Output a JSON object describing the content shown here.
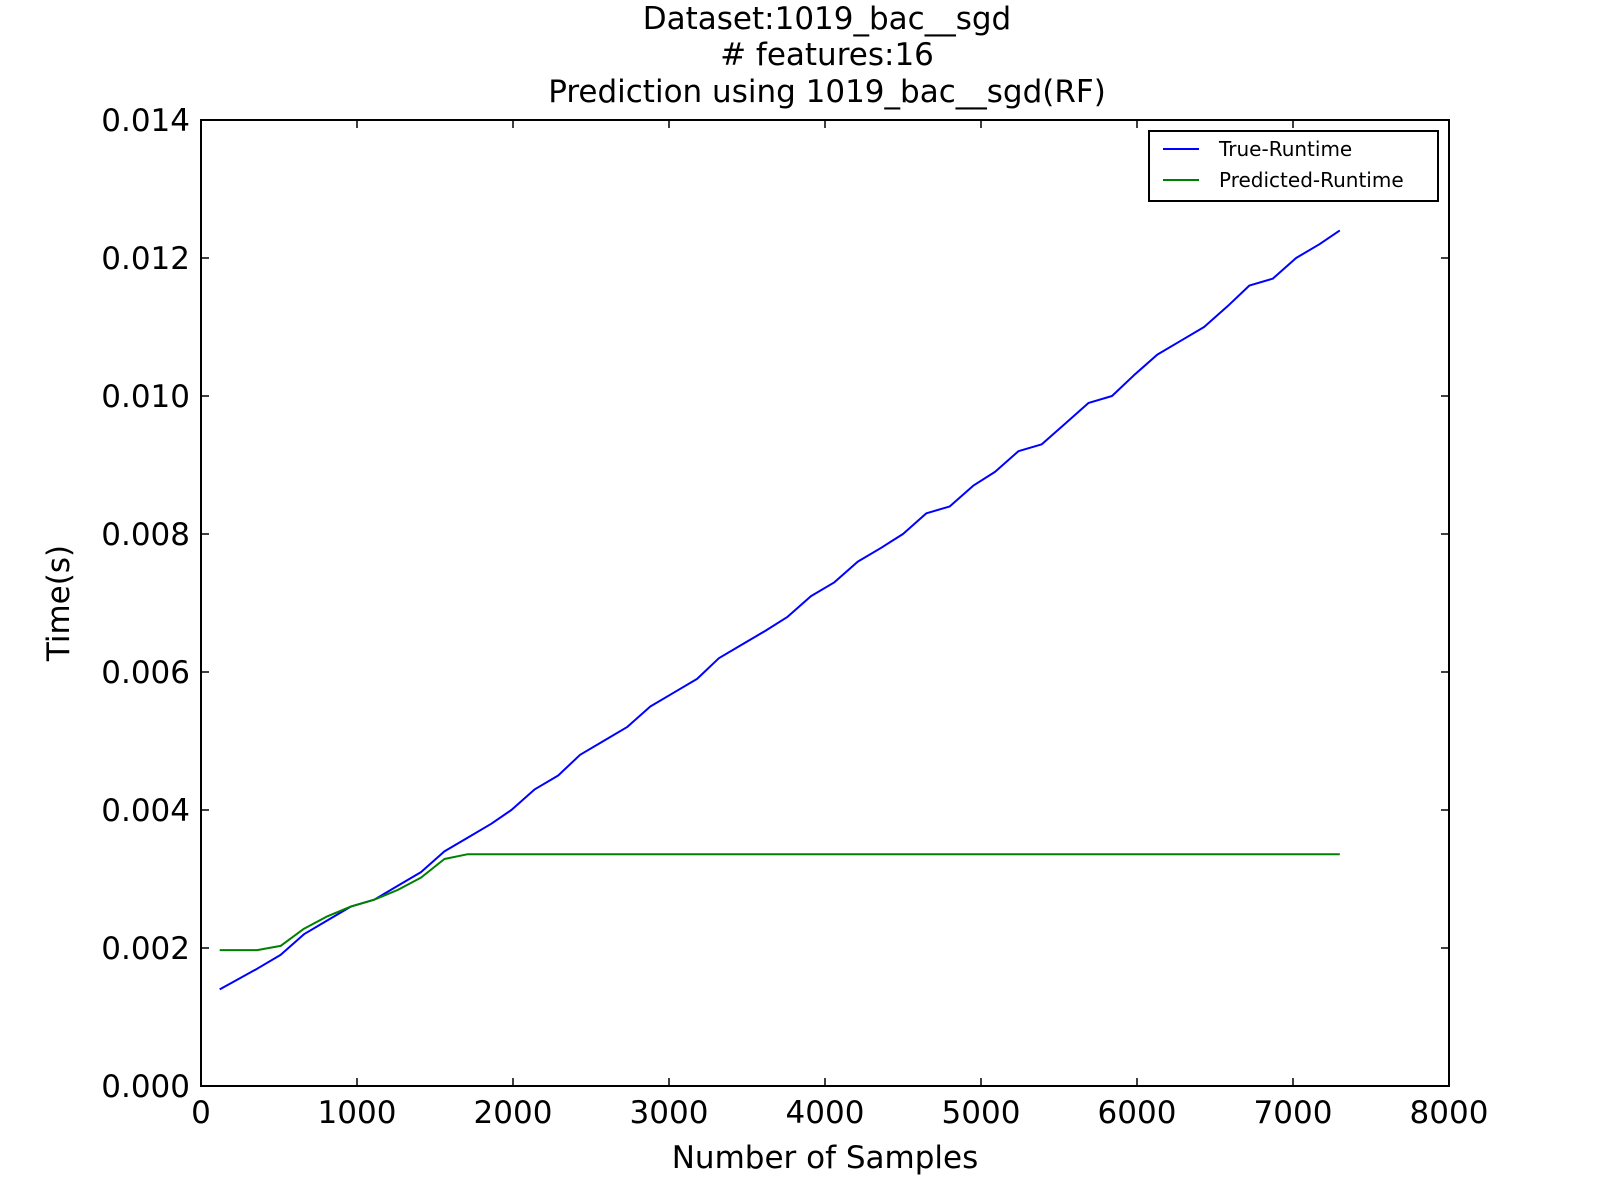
{
  "chart_data": {
    "type": "line",
    "title_lines": [
      "Dataset:1019_bac__sgd",
      "# features:16",
      "Prediction using 1019_bac__sgd(RF)"
    ],
    "xlabel": "Number of Samples",
    "ylabel": "Time(s)",
    "xlim": [
      0,
      8000
    ],
    "ylim": [
      0,
      0.014
    ],
    "x_ticks": [
      0,
      1000,
      2000,
      3000,
      4000,
      5000,
      6000,
      7000,
      8000
    ],
    "x_tick_labels": [
      "0",
      "1000",
      "2000",
      "3000",
      "4000",
      "5000",
      "6000",
      "7000",
      "8000"
    ],
    "y_ticks": [
      0,
      0.002,
      0.004,
      0.006,
      0.008,
      0.01,
      0.012,
      0.014
    ],
    "y_tick_labels": [
      "0.000",
      "0.002",
      "0.004",
      "0.006",
      "0.008",
      "0.010",
      "0.012",
      "0.014"
    ],
    "grid": false,
    "legend_position": "top-right",
    "series": [
      {
        "name": "True-Runtime",
        "color": "#0000ff",
        "x": [
          120,
          200,
          360,
          510,
          660,
          810,
          960,
          1110,
          1260,
          1410,
          1560,
          1710,
          1860,
          1990,
          2140,
          2290,
          2430,
          2580,
          2730,
          2880,
          3030,
          3180,
          3320,
          3470,
          3620,
          3760,
          3910,
          4060,
          4210,
          4360,
          4500,
          4650,
          4800,
          4950,
          5090,
          5240,
          5390,
          5540,
          5690,
          5840,
          5980,
          6130,
          6280,
          6430,
          6580,
          6720,
          6870,
          7020,
          7170,
          7300
        ],
        "y": [
          0.0014,
          0.0015,
          0.0017,
          0.0019,
          0.0022,
          0.0024,
          0.0026,
          0.0027,
          0.0029,
          0.0031,
          0.0034,
          0.0036,
          0.0038,
          0.004,
          0.0043,
          0.0045,
          0.0048,
          0.005,
          0.0052,
          0.0055,
          0.0057,
          0.0059,
          0.0062,
          0.0064,
          0.0066,
          0.0068,
          0.0071,
          0.0073,
          0.0076,
          0.0078,
          0.008,
          0.0083,
          0.0084,
          0.0087,
          0.0089,
          0.0092,
          0.0093,
          0.0096,
          0.0099,
          0.01,
          0.0103,
          0.0106,
          0.0108,
          0.011,
          0.0113,
          0.0116,
          0.0117,
          0.012,
          0.0122,
          0.0124
        ]
      },
      {
        "name": "Predicted-Runtime",
        "color": "#008000",
        "x": [
          120,
          200,
          360,
          510,
          660,
          810,
          960,
          1110,
          1260,
          1410,
          1560,
          1710,
          1860,
          2000,
          2500,
          3000,
          3500,
          4000,
          4500,
          5000,
          5500,
          6000,
          6500,
          7000,
          7300
        ],
        "y": [
          0.00197,
          0.00197,
          0.00197,
          0.00203,
          0.00228,
          0.00246,
          0.0026,
          0.0027,
          0.00284,
          0.00302,
          0.00329,
          0.00336,
          0.00336,
          0.00336,
          0.00336,
          0.00336,
          0.00336,
          0.00336,
          0.00336,
          0.00336,
          0.00336,
          0.00336,
          0.00336,
          0.00336,
          0.00336
        ]
      }
    ]
  }
}
